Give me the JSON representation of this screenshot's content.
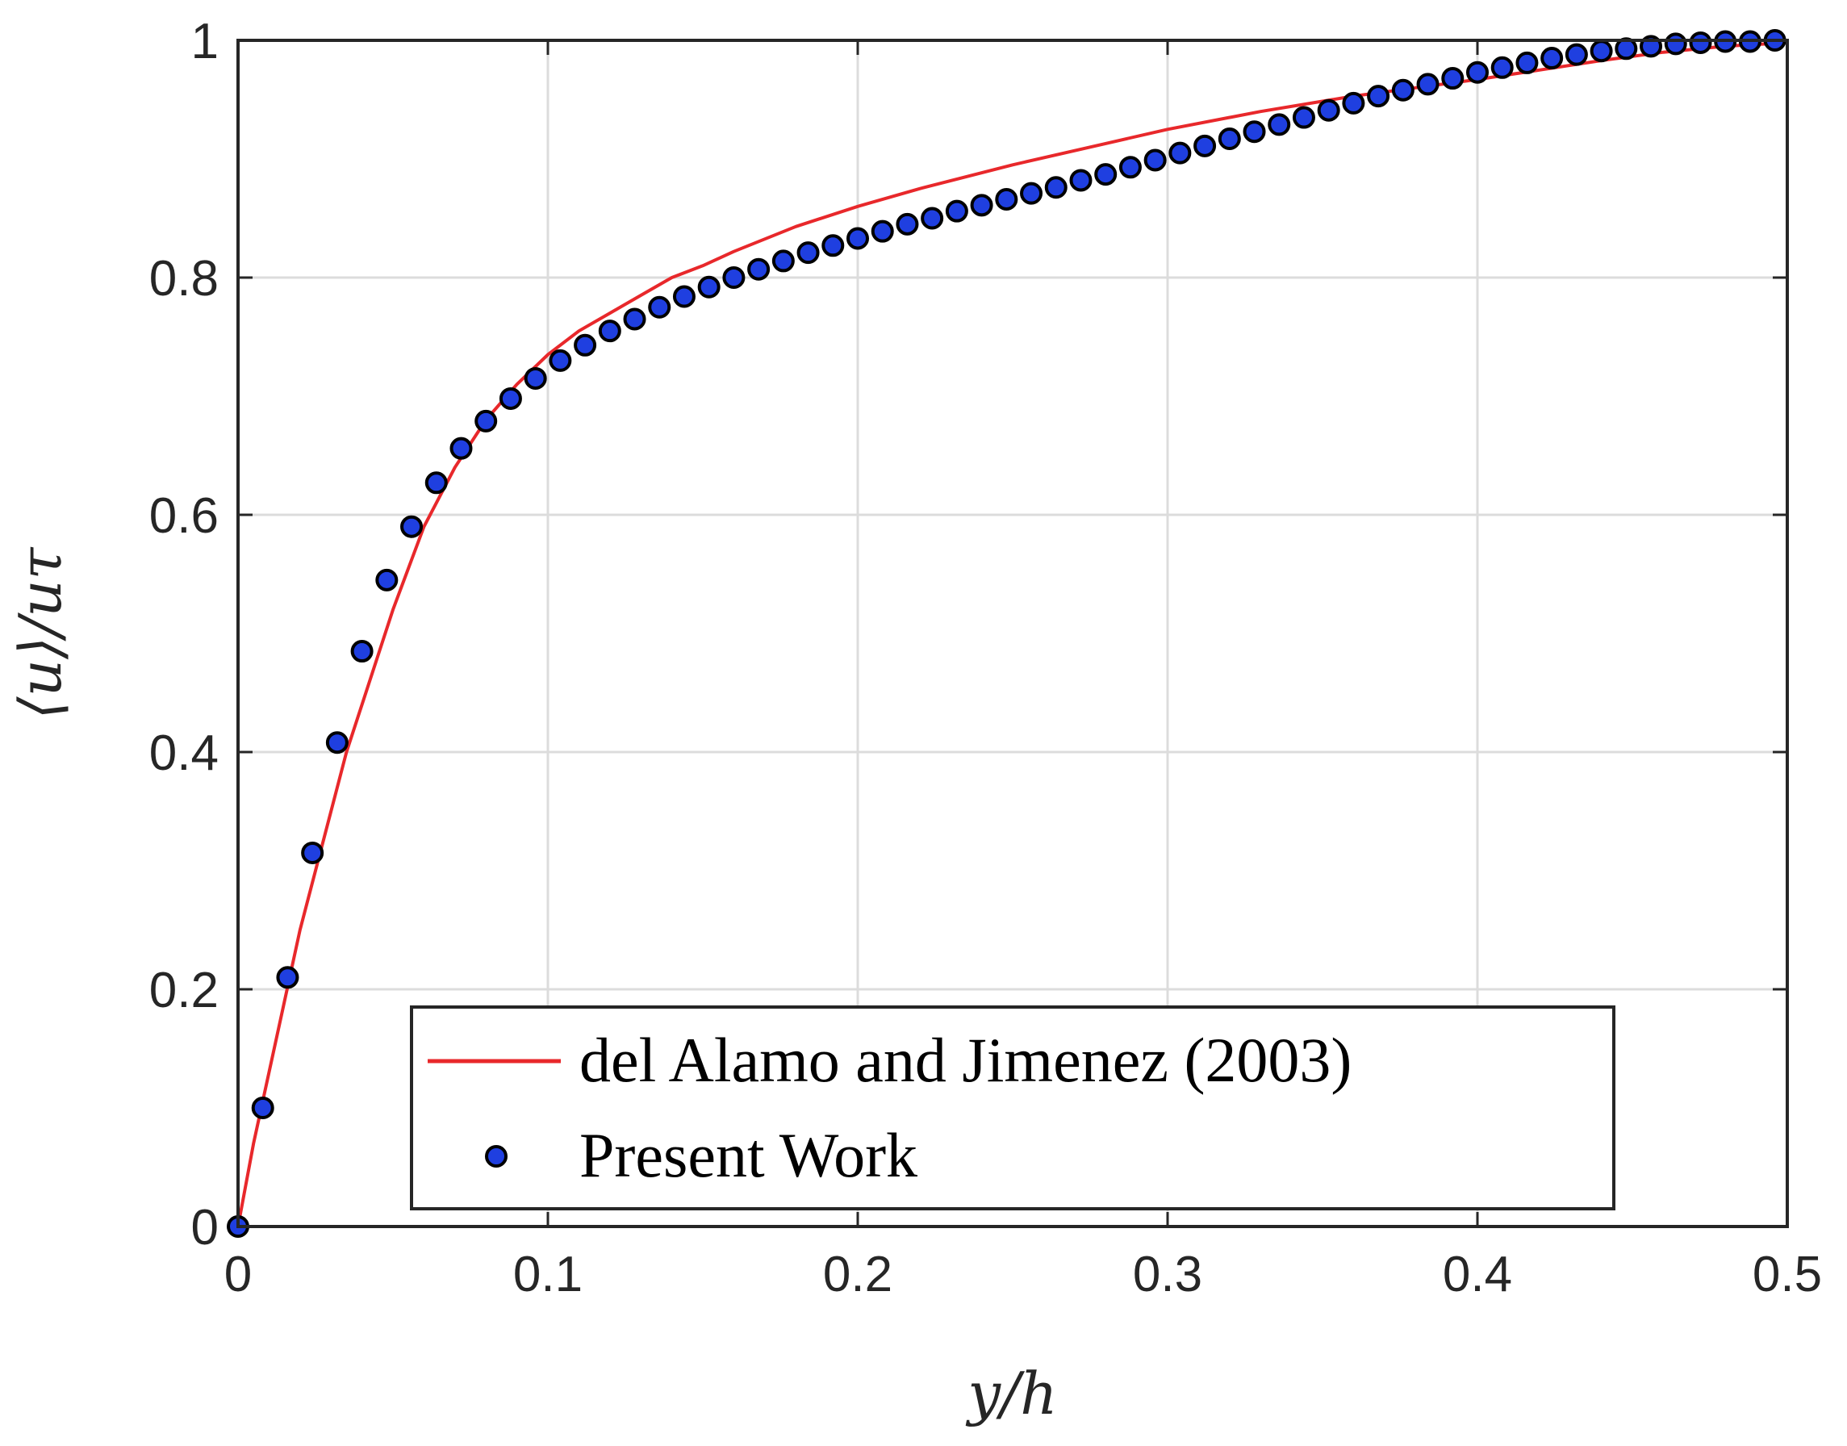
{
  "chart_data": {
    "type": "line",
    "xlabel": "y/h",
    "ylabel": "⟨u⟩/uτ",
    "xlim": [
      0,
      0.5
    ],
    "ylim": [
      0,
      1
    ],
    "grid": true,
    "legend_position": "bottom",
    "x_ticks": [
      "0",
      "0.1",
      "0.2",
      "0.3",
      "0.4",
      "0.5"
    ],
    "y_ticks": [
      "0",
      "0.2",
      "0.4",
      "0.6",
      "0.8",
      "1"
    ],
    "series": [
      {
        "name": "del Alamo and Jimenez (2003)",
        "style": "line",
        "color": "#e8282b",
        "x": [
          0,
          0.005,
          0.01,
          0.015,
          0.02,
          0.025,
          0.03,
          0.035,
          0.04,
          0.045,
          0.05,
          0.06,
          0.07,
          0.08,
          0.09,
          0.1,
          0.11,
          0.12,
          0.13,
          0.14,
          0.15,
          0.16,
          0.18,
          0.2,
          0.22,
          0.25,
          0.28,
          0.3,
          0.33,
          0.36,
          0.38,
          0.4,
          0.42,
          0.44,
          0.46,
          0.48,
          0.5
        ],
        "y": [
          0,
          0.07,
          0.13,
          0.19,
          0.25,
          0.3,
          0.35,
          0.4,
          0.44,
          0.48,
          0.52,
          0.59,
          0.64,
          0.68,
          0.71,
          0.735,
          0.755,
          0.77,
          0.785,
          0.8,
          0.81,
          0.822,
          0.843,
          0.86,
          0.875,
          0.895,
          0.913,
          0.925,
          0.94,
          0.953,
          0.96,
          0.967,
          0.975,
          0.983,
          0.99,
          0.995,
          0.998
        ]
      },
      {
        "name": "Present Work",
        "style": "markers",
        "color": "#1f3fe0",
        "x": [
          0,
          0.008,
          0.016,
          0.024,
          0.032,
          0.04,
          0.048,
          0.056,
          0.064,
          0.072,
          0.08,
          0.088,
          0.096,
          0.104,
          0.112,
          0.12,
          0.128,
          0.136,
          0.144,
          0.152,
          0.16,
          0.168,
          0.176,
          0.184,
          0.192,
          0.2,
          0.208,
          0.216,
          0.224,
          0.232,
          0.24,
          0.248,
          0.256,
          0.264,
          0.272,
          0.28,
          0.288,
          0.296,
          0.304,
          0.312,
          0.32,
          0.328,
          0.336,
          0.344,
          0.352,
          0.36,
          0.368,
          0.376,
          0.384,
          0.392,
          0.4,
          0.408,
          0.416,
          0.424,
          0.432,
          0.44,
          0.448,
          0.456,
          0.464,
          0.472,
          0.48,
          0.488,
          0.496
        ],
        "y": [
          0,
          0.1,
          0.21,
          0.315,
          0.408,
          0.485,
          0.545,
          0.59,
          0.627,
          0.656,
          0.679,
          0.698,
          0.715,
          0.73,
          0.743,
          0.755,
          0.765,
          0.775,
          0.784,
          0.792,
          0.8,
          0.807,
          0.814,
          0.821,
          0.827,
          0.833,
          0.839,
          0.845,
          0.85,
          0.856,
          0.861,
          0.866,
          0.871,
          0.876,
          0.882,
          0.887,
          0.893,
          0.899,
          0.905,
          0.911,
          0.917,
          0.923,
          0.929,
          0.935,
          0.941,
          0.947,
          0.953,
          0.958,
          0.963,
          0.968,
          0.973,
          0.977,
          0.981,
          0.985,
          0.988,
          0.991,
          0.993,
          0.995,
          0.997,
          0.998,
          0.999,
          0.999,
          1.0
        ]
      }
    ]
  }
}
